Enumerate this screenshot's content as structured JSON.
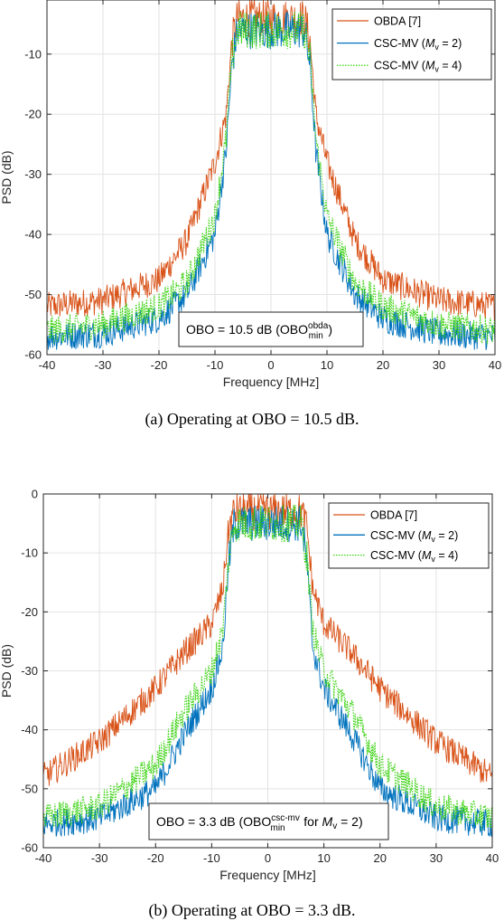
{
  "chart_data": [
    {
      "type": "line",
      "xlabel": "Frequency [MHz]",
      "ylabel": "PSD (dB)",
      "xlim": [
        -40,
        40
      ],
      "ylim": [
        -60,
        -1
      ],
      "xticks": [
        -40,
        -30,
        -20,
        -10,
        0,
        10,
        20,
        30,
        40
      ],
      "yticks": [
        -60,
        -50,
        -40,
        -30,
        -20,
        -10
      ],
      "grid": true,
      "legend_position": "top-right",
      "annotation": {
        "text": "OBO = 10.5 dB (OBO",
        "sup": "obda",
        "sub": "min",
        "tail": ")"
      },
      "caption": "(a)  Operating  at  OBO = 10.5  dB.",
      "series": [
        {
          "name": "OBDA [7]",
          "label": "OBDA [7]",
          "color": "#D95319",
          "style": "solid",
          "x": [
            -40,
            -30,
            -20,
            -15,
            -10,
            -8,
            -7,
            -6,
            0,
            6,
            7,
            8,
            10,
            15,
            20,
            30,
            40
          ],
          "y": [
            -52,
            -51,
            -47.5,
            -41,
            -28,
            -20,
            -8,
            -4,
            -4,
            -4,
            -8,
            -20,
            -28,
            -41,
            -47.5,
            -51,
            -52
          ]
        },
        {
          "name": "CSC-MV (M_v = 2)",
          "label_prefix": "CSC-MV (",
          "label_var": "M",
          "label_sub": "v",
          "label_suffix": " = 2)",
          "color": "#0072BD",
          "style": "solid",
          "x": [
            -40,
            -30,
            -20,
            -15,
            -10,
            -8,
            -7,
            -6,
            0,
            6,
            7,
            8,
            10,
            15,
            20,
            30,
            40
          ],
          "y": [
            -57,
            -56.5,
            -54,
            -50,
            -40,
            -26,
            -12,
            -6,
            -6,
            -6,
            -12,
            -26,
            -40,
            -50,
            -54,
            -56.5,
            -57
          ]
        },
        {
          "name": "CSC-MV (M_v = 4)",
          "label_prefix": "CSC-MV (",
          "label_var": "M",
          "label_sub": "v",
          "label_suffix": " = 4)",
          "color": "#39D20F",
          "style": "dotted",
          "x": [
            -40,
            -30,
            -20,
            -15,
            -10,
            -8,
            -7,
            -6,
            0,
            6,
            7,
            8,
            10,
            15,
            20,
            30,
            40
          ],
          "y": [
            -56,
            -55,
            -52,
            -48,
            -37,
            -24,
            -11,
            -6,
            -6,
            -6,
            -11,
            -24,
            -37,
            -48,
            -52,
            -55,
            -56
          ]
        }
      ]
    },
    {
      "type": "line",
      "xlabel": "Frequency [MHz]",
      "ylabel": "PSD (dB)",
      "xlim": [
        -40,
        40
      ],
      "ylim": [
        -60,
        0
      ],
      "xticks": [
        -40,
        -30,
        -20,
        -10,
        0,
        10,
        20,
        30,
        40
      ],
      "yticks": [
        -60,
        -50,
        -40,
        -30,
        -20,
        -10,
        0
      ],
      "grid": true,
      "legend_position": "top-right",
      "annotation": {
        "text": "OBO = 3.3 dB (OBO",
        "sup": "csc-mv",
        "sub": "min",
        "tail": " for ",
        "var": "M",
        "varsub": "v",
        "end": " = 2)"
      },
      "caption": "(b)  Operating  at  OBO = 3.3  dB.",
      "series": [
        {
          "name": "OBDA [7]",
          "label": "OBDA [7]",
          "color": "#D95319",
          "style": "solid",
          "x": [
            -40,
            -30,
            -20,
            -15,
            -10,
            -8,
            -7,
            -6,
            0,
            6,
            7,
            8,
            10,
            15,
            20,
            30,
            40
          ],
          "y": [
            -48,
            -42,
            -33,
            -27,
            -22,
            -16,
            -6,
            -3,
            -3,
            -3,
            -6,
            -16,
            -22,
            -27,
            -33,
            -42,
            -48
          ]
        },
        {
          "name": "CSC-MV (M_v = 2)",
          "label_prefix": "CSC-MV (",
          "label_var": "M",
          "label_sub": "v",
          "label_suffix": " = 2)",
          "color": "#0072BD",
          "style": "solid",
          "x": [
            -40,
            -30,
            -20,
            -15,
            -10,
            -8,
            -7,
            -6,
            0,
            6,
            7,
            8,
            10,
            15,
            20,
            30,
            40
          ],
          "y": [
            -56,
            -55,
            -50,
            -41,
            -33,
            -26,
            -12,
            -5,
            -5,
            -5,
            -12,
            -26,
            -33,
            -41,
            -50,
            -55,
            -56
          ]
        },
        {
          "name": "CSC-MV (M_v = 4)",
          "label_prefix": "CSC-MV (",
          "label_var": "M",
          "label_sub": "v",
          "label_suffix": " = 4)",
          "color": "#39D20F",
          "style": "dotted",
          "x": [
            -40,
            -30,
            -20,
            -15,
            -10,
            -8,
            -7,
            -6,
            0,
            6,
            7,
            8,
            10,
            15,
            20,
            30,
            40
          ],
          "y": [
            -55,
            -53,
            -46,
            -37,
            -30,
            -23,
            -11,
            -5,
            -5,
            -5,
            -11,
            -23,
            -30,
            -37,
            -46,
            -53,
            -55
          ]
        }
      ]
    }
  ]
}
